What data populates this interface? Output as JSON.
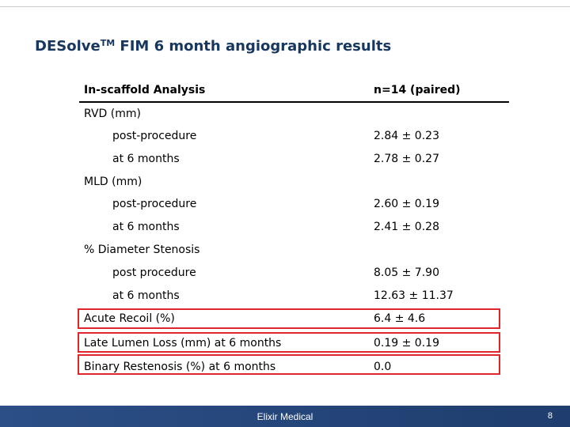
{
  "slide": {
    "title": "DESolve",
    "title_sup": "TM",
    "title_rest": " FIM 6 month angiographic results"
  },
  "table": {
    "header_label": "In-scaffold Analysis",
    "header_value": "n=14 (paired)",
    "rvd_label": "RVD (mm)",
    "rvd_post_label": "post-procedure",
    "rvd_post_value": "2.84 ± 0.23",
    "rvd_6m_label": "at 6 months",
    "rvd_6m_value": "2.78 ± 0.27",
    "mld_label": "MLD (mm)",
    "mld_post_label": "post-procedure",
    "mld_post_value": "2.60 ± 0.19",
    "mld_6m_label": "at 6 months",
    "mld_6m_value": "2.41 ± 0.28",
    "ds_label": "% Diameter Stenosis",
    "ds_post_label": "post procedure",
    "ds_post_value": "8.05 ± 7.90",
    "ds_6m_label": "at 6 months",
    "ds_6m_value": "12.63 ± 11.37",
    "recoil_label": "Acute Recoil (%)",
    "recoil_value": "6.4 ± 4.6",
    "lll_label": "Late Lumen Loss (mm) at 6 months",
    "lll_value": "0.19 ± 0.19",
    "br_label": "Binary Restenosis (%) at 6 months",
    "br_value": "0.0"
  },
  "footer": {
    "company": "Elixir Medical",
    "page_number": "8"
  },
  "colors": {
    "title": "#17375e",
    "highlight_border": "#e0262a",
    "footer_bg": "#2b4f86"
  }
}
